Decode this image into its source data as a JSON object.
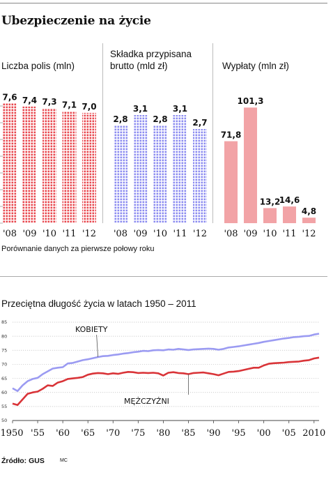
{
  "title": "Ubezpieczenie na życie",
  "note": "Porównanie danych za pierwsze połowy roku",
  "source": "Źródło: GUS",
  "author": "MC",
  "chart_data": [
    {
      "type": "bar",
      "title": "Liczba polis (mln)",
      "categories": [
        "'08",
        "'09",
        "'10",
        "'11",
        "'12"
      ],
      "values": [
        7.6,
        7.4,
        7.3,
        7.1,
        7.0
      ],
      "value_labels": [
        "7,6",
        "7,4",
        "7,3",
        "7,1",
        "7,0"
      ],
      "ylim": [
        0,
        8.5
      ],
      "color": "#e8484f",
      "style": "dotted"
    },
    {
      "type": "bar",
      "title": "Składka przypisana brutto (mld zł)",
      "title_lines": [
        "Składka przypisana",
        "brutto (mld zł)"
      ],
      "categories": [
        "'08",
        "'09",
        "'10",
        "'11",
        "'12"
      ],
      "values": [
        2.8,
        3.1,
        2.8,
        3.1,
        2.7
      ],
      "value_labels": [
        "2,8",
        "3,1",
        "2,8",
        "3,1",
        "2,7"
      ],
      "ylim": [
        0,
        3.5
      ],
      "color": "#8c8cf0",
      "style": "dotted"
    },
    {
      "type": "bar",
      "title": "Wypłaty (mln zł)",
      "categories": [
        "'08",
        "'09",
        "'10",
        "'11",
        "'12"
      ],
      "values": [
        71.8,
        101.3,
        13.2,
        14.6,
        4.8
      ],
      "value_labels": [
        "71,8",
        "101,3",
        "13,2",
        "14,6",
        "4,8"
      ],
      "ylim": [
        0,
        110
      ],
      "color": "#f2a3a6",
      "style": "solid"
    },
    {
      "type": "line",
      "title": "Przeciętna długość życia w latach 1950 – 2011",
      "x_ticks": [
        "1950",
        "'55",
        "'60",
        "'65",
        "'70",
        "'75",
        "'80",
        "'85",
        "'90",
        "'95",
        "'00",
        "'05",
        "2010"
      ],
      "y_ticks": [
        "50",
        "55",
        "60",
        "65",
        "70",
        "75",
        "80",
        "85"
      ],
      "ylim": [
        50,
        85
      ],
      "xlim": [
        1950,
        2011
      ],
      "grid": true,
      "series": [
        {
          "name": "KOBIETY",
          "color": "#9b9bf2",
          "x": [
            1950,
            1951,
            1952,
            1953,
            1954,
            1955,
            1956,
            1957,
            1958,
            1959,
            1960,
            1961,
            1962,
            1963,
            1964,
            1965,
            1966,
            1967,
            1968,
            1969,
            1970,
            1971,
            1972,
            1973,
            1974,
            1975,
            1976,
            1977,
            1978,
            1979,
            1980,
            1981,
            1982,
            1983,
            1984,
            1985,
            1986,
            1987,
            1988,
            1989,
            1990,
            1991,
            1992,
            1993,
            1994,
            1995,
            1996,
            1997,
            1998,
            1999,
            2000,
            2001,
            2002,
            2003,
            2004,
            2005,
            2006,
            2007,
            2008,
            2009,
            2010,
            2011
          ],
          "y": [
            61.5,
            60.5,
            62.5,
            64.0,
            64.8,
            65.2,
            66.5,
            67.5,
            68.5,
            68.8,
            69.0,
            70.3,
            70.5,
            71.0,
            71.5,
            71.8,
            72.2,
            72.6,
            72.9,
            73.0,
            73.3,
            73.5,
            73.8,
            74.0,
            74.3,
            74.5,
            74.8,
            74.7,
            75.0,
            75.1,
            75.0,
            75.3,
            75.2,
            75.5,
            75.3,
            75.1,
            75.3,
            75.4,
            75.5,
            75.6,
            75.5,
            75.2,
            75.5,
            76.0,
            76.2,
            76.4,
            76.7,
            77.0,
            77.3,
            77.6,
            78.0,
            78.3,
            78.6,
            78.9,
            79.2,
            79.4,
            79.7,
            79.8,
            80.0,
            80.1,
            80.6,
            80.9
          ]
        },
        {
          "name": "MĘŻCZYŹNI",
          "color": "#d93438",
          "x": [
            1950,
            1951,
            1952,
            1953,
            1954,
            1955,
            1956,
            1957,
            1958,
            1959,
            1960,
            1961,
            1962,
            1963,
            1964,
            1965,
            1966,
            1967,
            1968,
            1969,
            1970,
            1971,
            1972,
            1973,
            1974,
            1975,
            1976,
            1977,
            1978,
            1979,
            1980,
            1981,
            1982,
            1983,
            1984,
            1985,
            1986,
            1987,
            1988,
            1989,
            1990,
            1991,
            1992,
            1993,
            1994,
            1995,
            1996,
            1997,
            1998,
            1999,
            2000,
            2001,
            2002,
            2003,
            2004,
            2005,
            2006,
            2007,
            2008,
            2009,
            2010,
            2011
          ],
          "y": [
            56.0,
            55.5,
            57.5,
            59.5,
            60.0,
            60.3,
            61.3,
            62.5,
            62.3,
            63.5,
            64.0,
            64.8,
            65.0,
            65.2,
            65.5,
            66.3,
            66.7,
            66.9,
            66.8,
            66.5,
            66.8,
            66.6,
            67.0,
            67.3,
            67.2,
            66.9,
            67.0,
            66.9,
            67.0,
            66.8,
            66.0,
            67.0,
            67.2,
            66.9,
            66.8,
            66.5,
            66.9,
            67.0,
            67.1,
            66.8,
            66.5,
            66.1,
            66.7,
            67.3,
            67.4,
            67.6,
            68.0,
            68.4,
            68.8,
            68.8,
            69.6,
            70.2,
            70.4,
            70.5,
            70.6,
            70.8,
            70.9,
            71.0,
            71.3,
            71.5,
            72.1,
            72.4
          ]
        }
      ]
    }
  ]
}
